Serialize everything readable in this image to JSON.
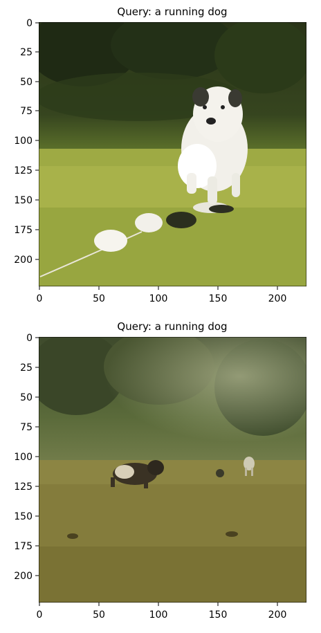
{
  "panels": [
    {
      "title": "Query: a running dog",
      "x_ticks": [
        "0",
        "50",
        "100",
        "150",
        "200"
      ],
      "y_ticks": [
        "0",
        "25",
        "50",
        "75",
        "100",
        "125",
        "150",
        "175",
        "200"
      ],
      "scene": "white-dog-running-toward-camera"
    },
    {
      "title": "Query: a running dog",
      "x_ticks": [
        "0",
        "50",
        "100",
        "150",
        "200"
      ],
      "y_ticks": [
        "0",
        "25",
        "50",
        "75",
        "100",
        "125",
        "150",
        "175",
        "200"
      ],
      "scene": "dogs-running-on-misty-field"
    }
  ],
  "colors": {
    "grass_light": "#a8b24a",
    "grass_dark": "#6f7a2c",
    "tree_dark": "#1f2a14",
    "mist": "#8e9466",
    "dog_white": "#f2f0ea"
  }
}
